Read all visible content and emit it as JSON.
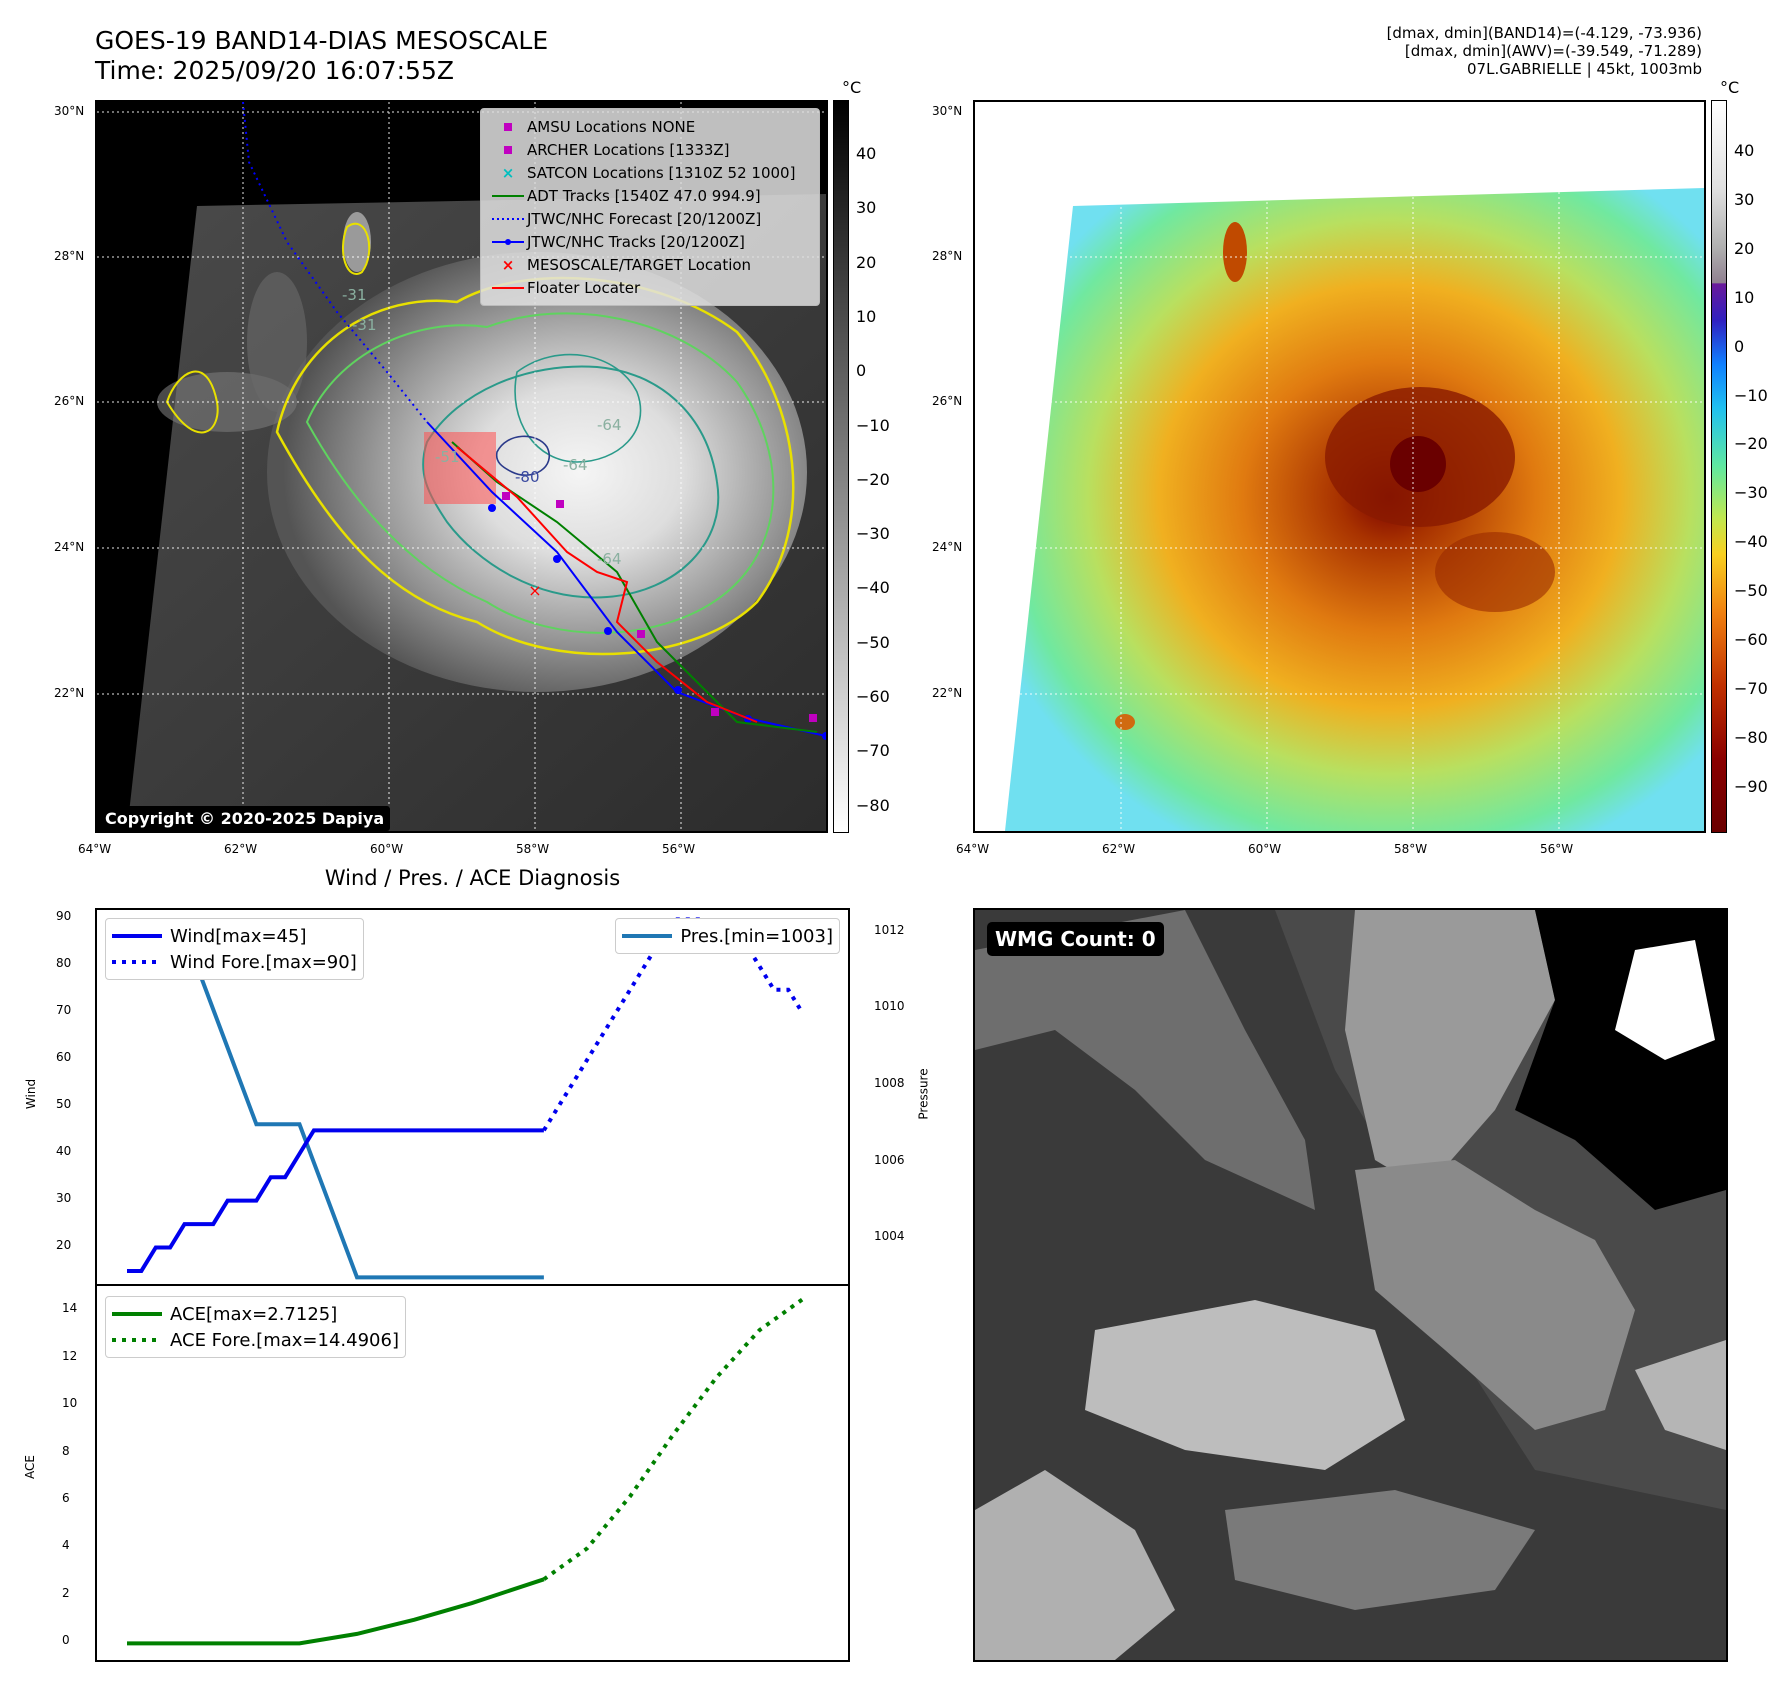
{
  "header": {
    "title_line1": "GOES-19 BAND14-DIAS MESOSCALE",
    "title_line2": "Time: 2025/09/20 16:07:55Z",
    "right_line1": "[dmax, dmin](BAND14)=(-4.129, -73.936)",
    "right_line2": "[dmax, dmin](AWV)=(-39.549, -71.289)",
    "right_line3": "07L.GABRIELLE | 45kt, 1003mb"
  },
  "map_left": {
    "lat_ticks": [
      "30°N",
      "28°N",
      "26°N",
      "24°N",
      "22°N"
    ],
    "lon_ticks": [
      "64°W",
      "62°W",
      "60°W",
      "58°W",
      "56°W"
    ],
    "copyright": "Copyright © 2020-2025 Dapiya",
    "legend": [
      {
        "label": "AMSU Locations NONE",
        "color": "#c000c0"
      },
      {
        "label": "ARCHER Locations [1333Z]",
        "color": "#c000c0"
      },
      {
        "label": "SATCON Locations [1310Z 52 1000]",
        "color": "#00bfbf"
      },
      {
        "label": "ADT Tracks [1540Z 47.0 994.9]",
        "color": "#008000"
      },
      {
        "label": "JTWC/NHC Forecast [20/1200Z]",
        "color": "#0000ff"
      },
      {
        "label": "JTWC/NHC Tracks [20/1200Z]",
        "color": "#0000ff"
      },
      {
        "label": "MESOSCALE/TARGET Location",
        "color": "#ff0000"
      },
      {
        "label": "Floater Locater",
        "color": "#ff0000"
      }
    ],
    "contour_labels": [
      "-31",
      "-31",
      "-51",
      "-64",
      "-64",
      "-64",
      "-80"
    ],
    "colorbar": {
      "unit": "°C",
      "ticks": [
        "40",
        "30",
        "20",
        "10",
        "0",
        "−10",
        "−20",
        "−30",
        "−40",
        "−50",
        "−60",
        "−70",
        "−80"
      ]
    }
  },
  "map_right": {
    "lat_ticks": [
      "30°N",
      "28°N",
      "26°N",
      "24°N",
      "22°N"
    ],
    "lon_ticks": [
      "64°W",
      "62°W",
      "60°W",
      "58°W",
      "56°W"
    ],
    "colorbar": {
      "unit": "°C",
      "ticks": [
        "40",
        "30",
        "20",
        "10",
        "0",
        "−10",
        "−20",
        "−30",
        "−40",
        "−50",
        "−60",
        "−70",
        "−80",
        "−90"
      ]
    }
  },
  "chart_title": "Wind / Pres. / ACE Diagnosis",
  "chart_data": [
    {
      "type": "line",
      "title": "Wind / Pres. / ACE Diagnosis",
      "ylabel": "Wind",
      "y2label": "Pressure",
      "ylim": [
        12,
        92
      ],
      "y2lim": [
        1002.8,
        1012.6
      ],
      "yticks": [
        20,
        30,
        40,
        50,
        60,
        70,
        80,
        90
      ],
      "y2ticks": [
        1004,
        1006,
        1008,
        1010,
        1012
      ],
      "x": [
        0,
        1,
        2,
        3,
        4,
        5,
        6,
        7,
        8,
        9,
        10,
        11,
        12,
        13,
        14,
        15,
        16,
        17,
        18,
        19,
        20,
        21,
        22,
        23,
        24,
        25,
        26,
        27,
        28,
        29,
        30,
        31,
        32,
        33,
        34,
        35,
        36,
        37,
        38,
        39,
        40,
        41,
        42,
        43,
        44,
        45,
        46,
        47
      ],
      "series": [
        {
          "name": "Wind[max=45]",
          "style": "solid",
          "color": "#0000ee",
          "x": [
            0,
            1,
            2,
            3,
            4,
            5,
            6,
            7,
            8,
            9,
            10,
            11,
            12,
            13,
            14,
            15,
            16,
            17,
            18,
            19,
            20,
            21,
            22,
            23,
            24,
            25,
            26,
            27,
            28,
            29
          ],
          "values": [
            15,
            15,
            20,
            20,
            25,
            25,
            25,
            30,
            30,
            30,
            35,
            35,
            40,
            45,
            45,
            45,
            45,
            45,
            45,
            45,
            45,
            45,
            45,
            45,
            45,
            45,
            45,
            45,
            45,
            45
          ]
        },
        {
          "name": "Wind Fore.[max=90]",
          "style": "dotted",
          "color": "#0000ee",
          "x": [
            29,
            30,
            31,
            32,
            33,
            34,
            35,
            36,
            37,
            38,
            39,
            40,
            41,
            42,
            43,
            44,
            45,
            46,
            47
          ],
          "values": [
            45,
            50,
            55,
            60,
            65,
            70,
            75,
            80,
            85,
            90,
            90,
            90,
            85,
            85,
            85,
            80,
            75,
            75,
            70
          ]
        },
        {
          "name": "Pres.[min=1003]",
          "style": "solid",
          "color": "#1f77b4",
          "axis": "right",
          "x": [
            2,
            3,
            4,
            5,
            6,
            7,
            8,
            9,
            10,
            11,
            12,
            13,
            14,
            15,
            16,
            17,
            18,
            19,
            20,
            21,
            22,
            23,
            24,
            25,
            26,
            27,
            28,
            29
          ],
          "values": [
            1012,
            1012,
            1011,
            1011,
            1010,
            1009,
            1008,
            1007,
            1007,
            1007,
            1007,
            1006,
            1005,
            1004,
            1003,
            1003,
            1003,
            1003,
            1003,
            1003,
            1003,
            1003,
            1003,
            1003,
            1003,
            1003,
            1003,
            1003
          ]
        }
      ]
    },
    {
      "type": "line",
      "ylabel": "ACE",
      "ylim": [
        -0.7,
        15.1
      ],
      "yticks": [
        0,
        2,
        4,
        6,
        8,
        10,
        12,
        14
      ],
      "series": [
        {
          "name": "ACE[max=2.7125]",
          "style": "solid",
          "color": "#008000",
          "x": [
            0,
            4,
            8,
            12,
            16,
            20,
            24,
            29
          ],
          "values": [
            0,
            0,
            0,
            0,
            0.4,
            1.0,
            1.7,
            2.7
          ]
        },
        {
          "name": "ACE Fore.[max=14.4906]",
          "style": "dotted",
          "color": "#008000",
          "x": [
            29,
            32,
            35,
            38,
            41,
            44,
            47
          ],
          "values": [
            2.7,
            4.0,
            6.2,
            8.8,
            11.2,
            13.2,
            14.5
          ]
        }
      ]
    }
  ],
  "wmg": {
    "label": "WMG Count: 0"
  }
}
